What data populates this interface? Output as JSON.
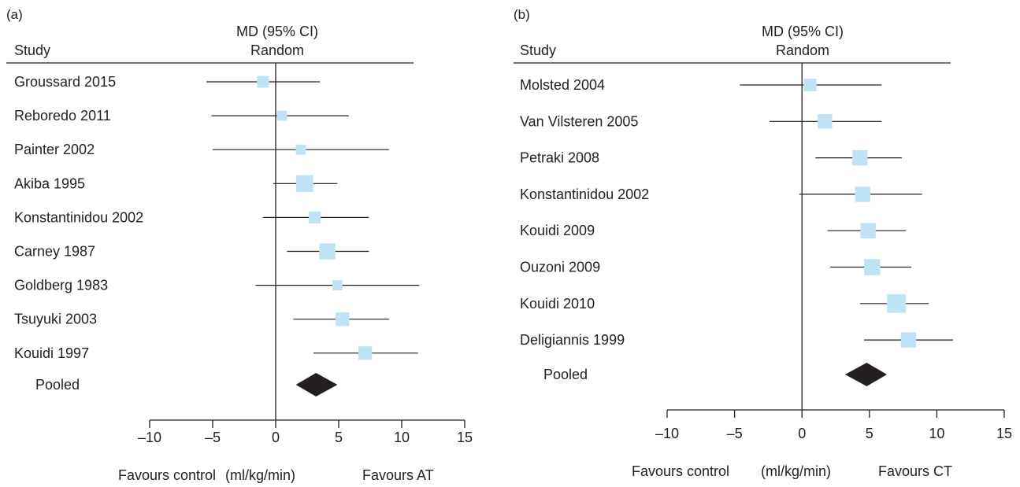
{
  "colors": {
    "box": "#bfe3f5",
    "diamond": "#231f20",
    "line": "#231f20"
  },
  "chart_data": [
    {
      "type": "forest",
      "panel_label": "(a)",
      "header": {
        "study": "Study",
        "effect_line1": "MD (95% CI)",
        "effect_line2": "Random"
      },
      "studies": [
        {
          "label": "Groussard 2015",
          "md": -1.0,
          "ci": [
            -5.5,
            3.5
          ],
          "weight": 1.0
        },
        {
          "label": "Reboredo 2011",
          "md": 0.5,
          "ci": [
            -5.1,
            5.8
          ],
          "weight": 0.8
        },
        {
          "label": "Painter 2002",
          "md": 2.0,
          "ci": [
            -5.0,
            9.0
          ],
          "weight": 0.8
        },
        {
          "label": "Akiba 1995",
          "md": 2.3,
          "ci": [
            -0.2,
            4.9
          ],
          "weight": 1.6
        },
        {
          "label": "Konstantinidou 2002",
          "md": 3.1,
          "ci": [
            -1.0,
            7.4
          ],
          "weight": 1.0
        },
        {
          "label": "Carney 1987",
          "md": 4.1,
          "ci": [
            0.9,
            7.4
          ],
          "weight": 1.5
        },
        {
          "label": "Goldberg 1983",
          "md": 4.9,
          "ci": [
            -1.6,
            11.4
          ],
          "weight": 0.8
        },
        {
          "label": "Tsuyuki 2003",
          "md": 5.3,
          "ci": [
            1.4,
            9.0
          ],
          "weight": 1.2
        },
        {
          "label": "Kouidi 1997",
          "md": 7.1,
          "ci": [
            3.0,
            11.3
          ],
          "weight": 1.2
        }
      ],
      "pooled": {
        "label": "Pooled",
        "md": 3.2,
        "ci": [
          1.6,
          4.9
        ]
      },
      "xlim": [
        -10,
        15
      ],
      "xticks": [
        -10,
        -5,
        0,
        5,
        10,
        15
      ],
      "xtick_labels": [
        "–10",
        "–5",
        "0",
        "5",
        "10",
        "15"
      ],
      "xlabel_left": "Favours control",
      "xlabel_mid": "(ml/kg/min)",
      "xlabel_right": "Favours AT"
    },
    {
      "type": "forest",
      "panel_label": "(b)",
      "header": {
        "study": "Study",
        "effect_line1": "MD (95% CI)",
        "effect_line2": "Random"
      },
      "studies": [
        {
          "label": "Molsted 2004",
          "md": 0.6,
          "ci": [
            -4.6,
            5.9
          ],
          "weight": 1.1
        },
        {
          "label": "Van Vilsteren 2005",
          "md": 1.7,
          "ci": [
            -2.4,
            5.9
          ],
          "weight": 1.3
        },
        {
          "label": "Petraki 2008",
          "md": 4.3,
          "ci": [
            1.0,
            7.4
          ],
          "weight": 1.4
        },
        {
          "label": "Konstantinidou 2002",
          "md": 4.5,
          "ci": [
            -0.2,
            8.9
          ],
          "weight": 1.4
        },
        {
          "label": "Kouidi 2009",
          "md": 4.9,
          "ci": [
            1.9,
            7.7
          ],
          "weight": 1.4
        },
        {
          "label": "Ouzoni 2009",
          "md": 5.2,
          "ci": [
            2.1,
            8.1
          ],
          "weight": 1.5
        },
        {
          "label": "Kouidi 2010",
          "md": 7.0,
          "ci": [
            4.3,
            9.4
          ],
          "weight": 1.8
        },
        {
          "label": "Deligiannis 1999",
          "md": 7.9,
          "ci": [
            4.6,
            11.2
          ],
          "weight": 1.4
        }
      ],
      "pooled": {
        "label": "Pooled",
        "md": 4.8,
        "ci": [
          3.2,
          6.3
        ]
      },
      "xlim": [
        -10,
        15
      ],
      "xticks": [
        -10,
        -5,
        0,
        5,
        10,
        15
      ],
      "xtick_labels": [
        "–10",
        "–5",
        "0",
        "5",
        "10",
        "15"
      ],
      "xlabel_left": "Favours control",
      "xlabel_mid": "(ml/kg/min)",
      "xlabel_right": "Favours CT"
    }
  ]
}
